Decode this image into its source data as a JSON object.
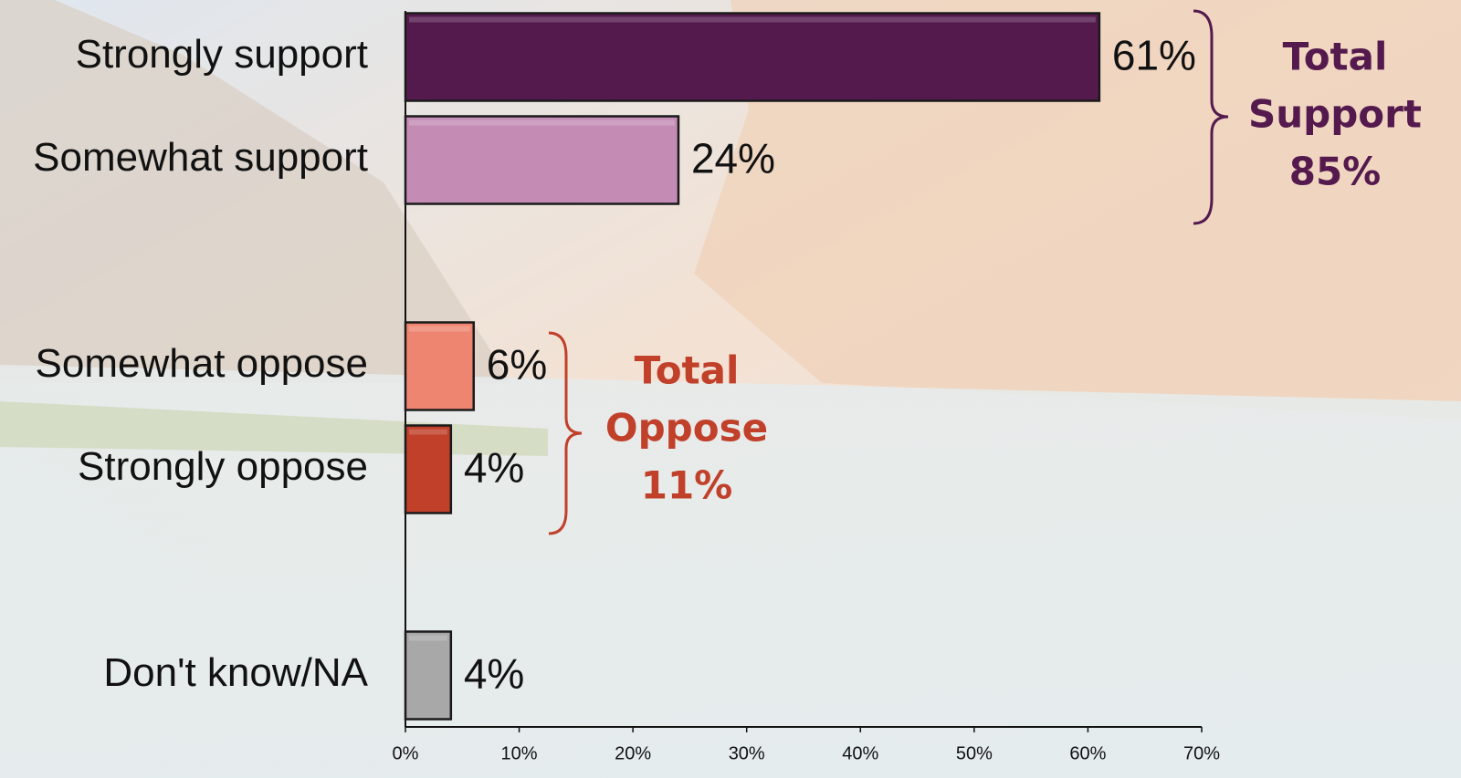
{
  "chart_data": {
    "type": "bar",
    "orientation": "horizontal",
    "categories": [
      "Strongly support",
      "Somewhat support",
      null,
      "Somewhat oppose",
      "Strongly oppose",
      null,
      "Don't know/NA"
    ],
    "values": [
      61,
      24,
      null,
      6,
      4,
      null,
      4
    ],
    "value_labels": [
      "61%",
      "24%",
      null,
      "6%",
      "4%",
      null,
      "4%"
    ],
    "colors": [
      "#541a4e",
      "#c48bb5",
      null,
      "#ee8571",
      "#c0402a",
      null,
      "#a8a8a8"
    ],
    "xlim": [
      0,
      70
    ],
    "xticks": [
      {
        "value": 0,
        "label": "0%"
      },
      {
        "value": 10,
        "label": "10%"
      },
      {
        "value": 20,
        "label": "20%"
      },
      {
        "value": 30,
        "label": "30%"
      },
      {
        "value": 40,
        "label": "40%"
      },
      {
        "value": 50,
        "label": "50%"
      },
      {
        "value": 60,
        "label": "60%"
      },
      {
        "value": 70,
        "label": "70%"
      }
    ],
    "grid": false,
    "annotations": [
      {
        "lines": [
          "Total",
          "Support",
          "85%"
        ],
        "color": "#541a4e"
      },
      {
        "lines": [
          "Total",
          "Oppose",
          "11%"
        ],
        "color": "#c0402a"
      }
    ]
  }
}
